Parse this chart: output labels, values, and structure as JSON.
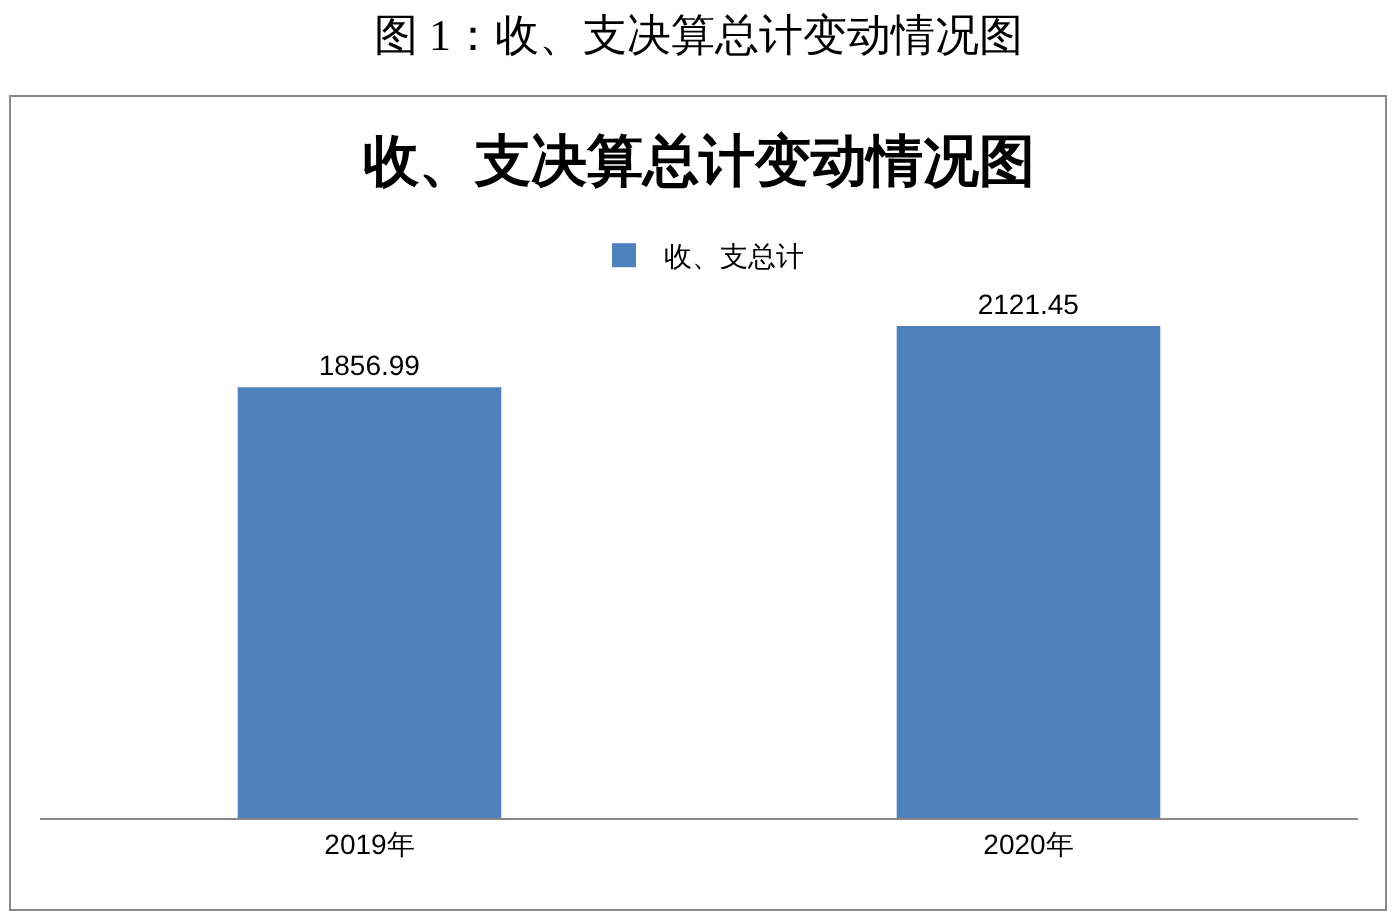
{
  "chart_data": {
    "type": "bar",
    "title": "收、支决算总计变动情况图",
    "annotations": [
      "图 1：收、支决算总计变动情况图"
    ],
    "categories": [
      "2019年",
      "2020年"
    ],
    "series": [
      {
        "name": "收、支总计",
        "color": "#4f81bd",
        "values": [
          1856.99,
          2121.45
        ]
      }
    ],
    "tick_labels": "x",
    "data_labels": true,
    "legend": "top"
  }
}
